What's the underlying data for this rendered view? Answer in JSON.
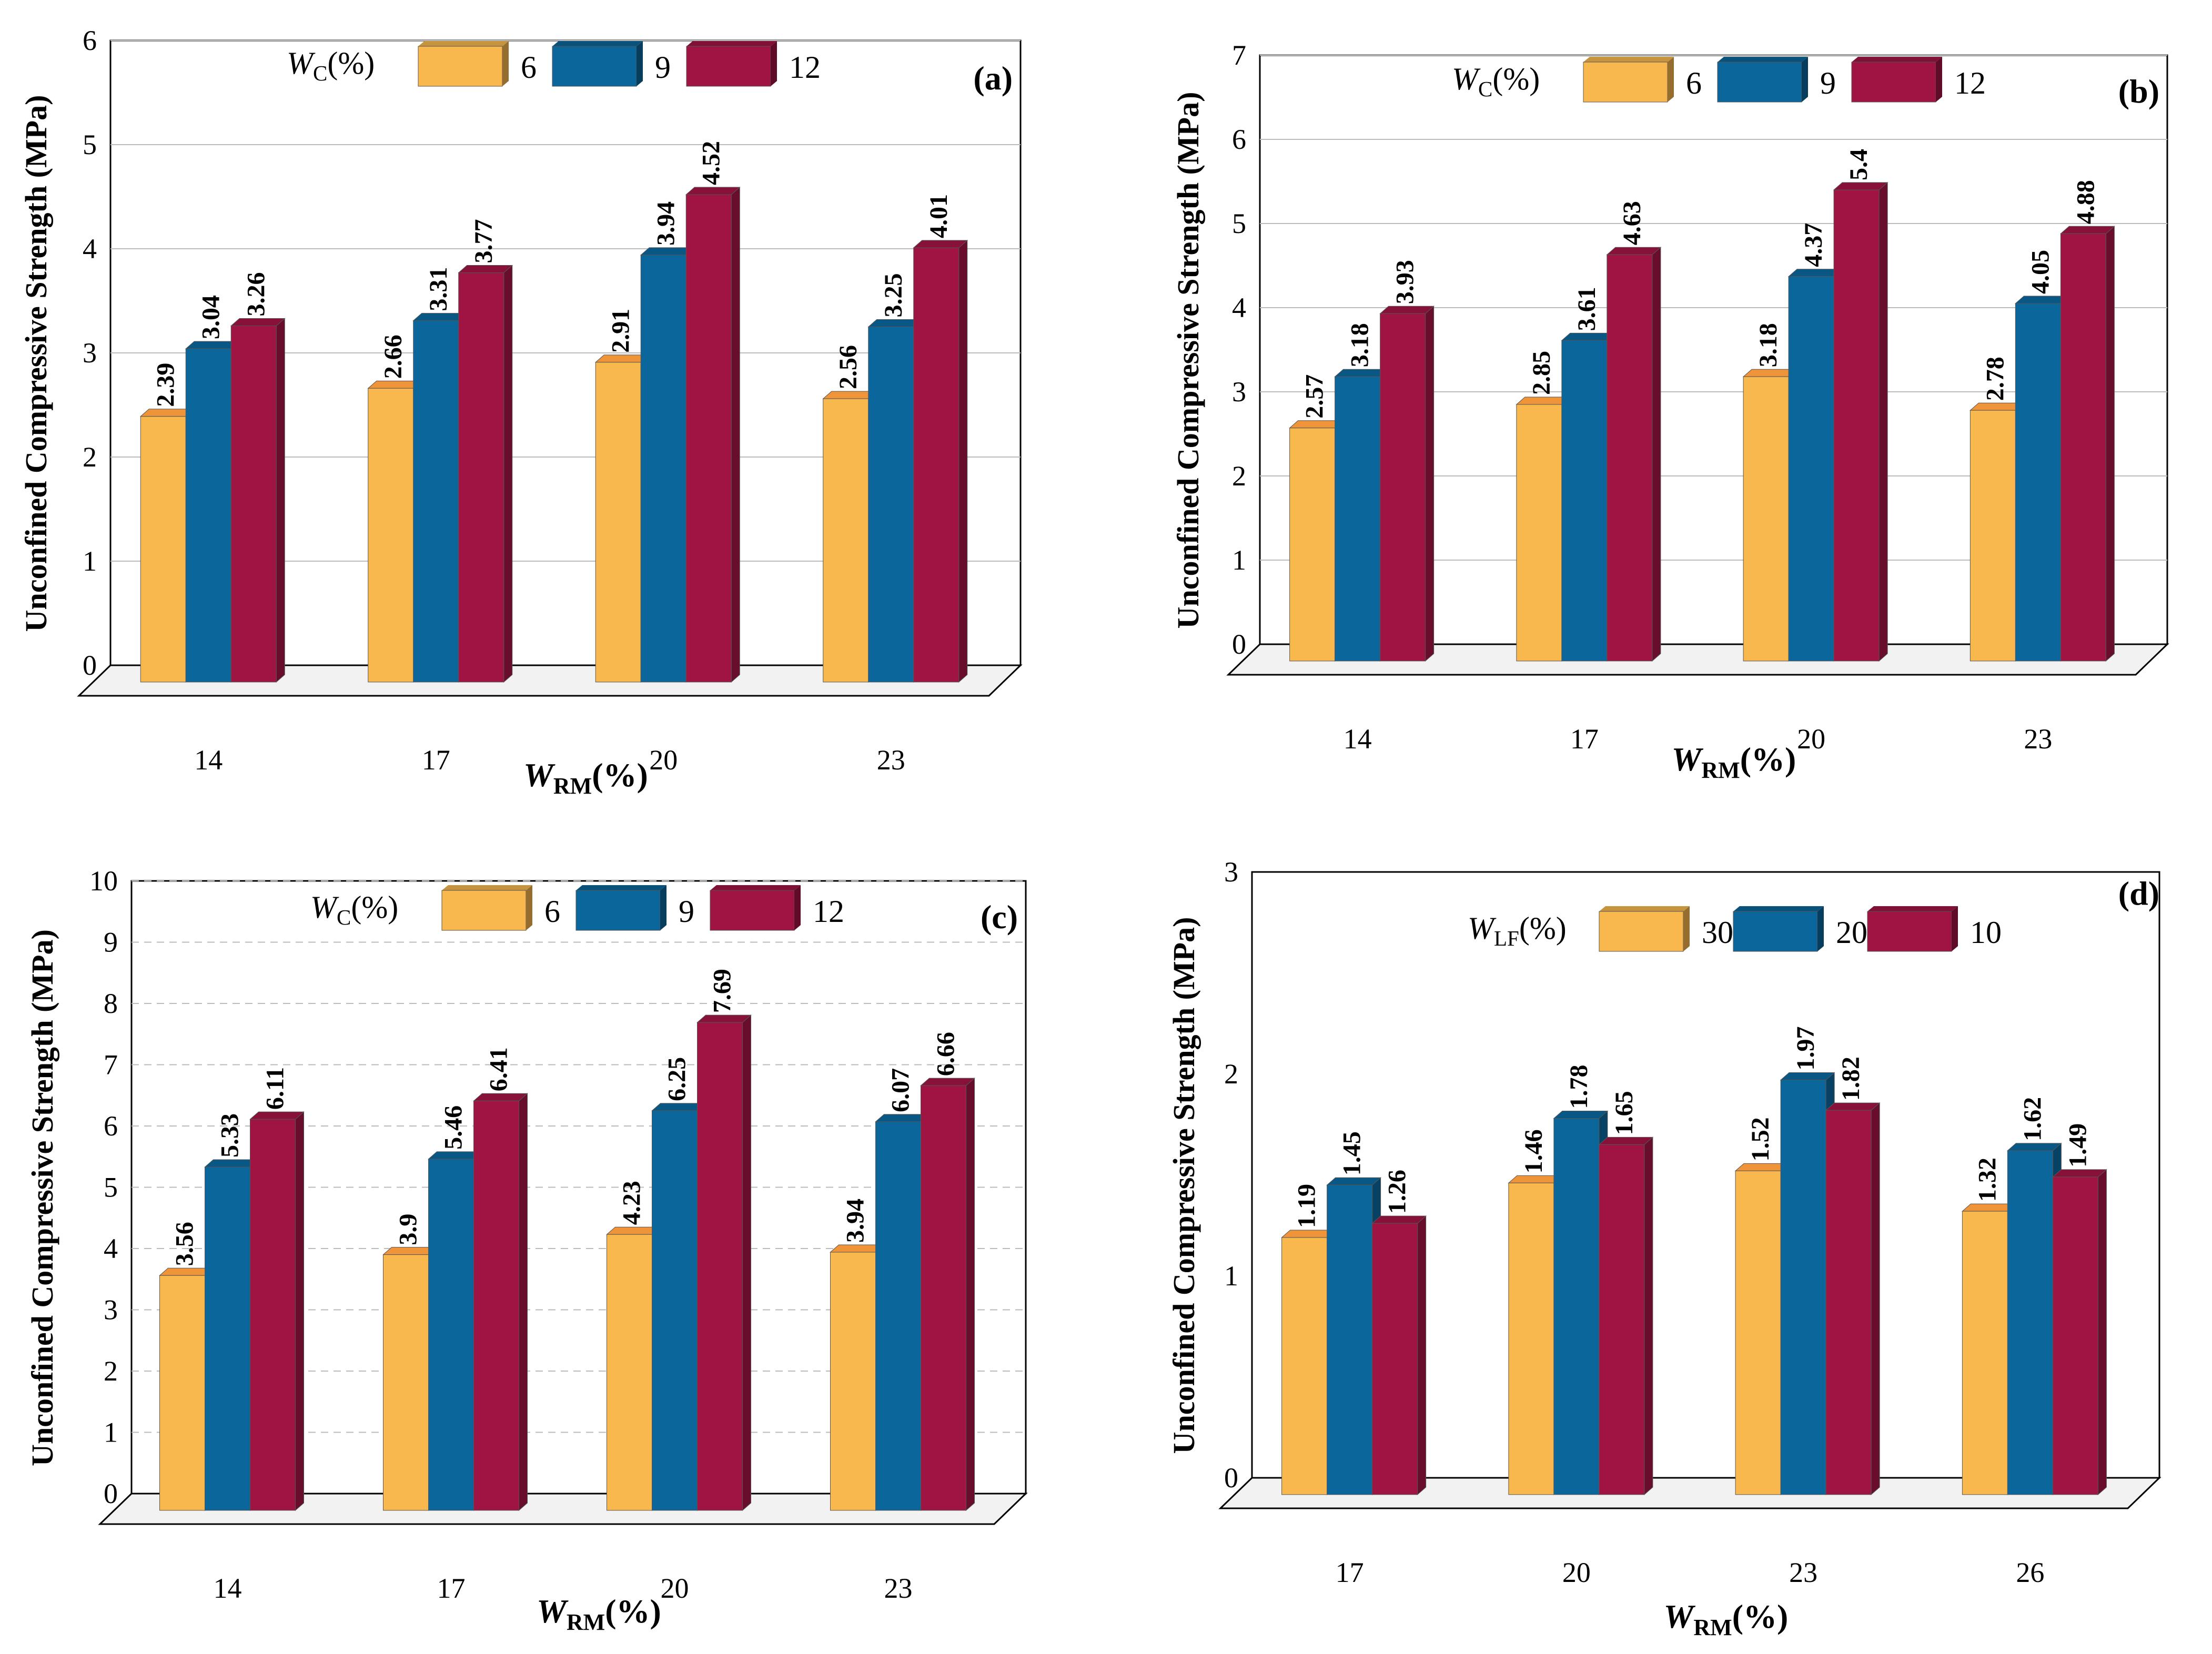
{
  "colors": {
    "s0": "#f8b84e",
    "s1": "#0b669b",
    "s2": "#a01443",
    "grid": "#bbbbbb",
    "axis": "#000000"
  },
  "chart_data": [
    {
      "panel": "(a)",
      "type": "bar",
      "ylabel": "Unconfined Compressive Strength (MPa)",
      "xlabel": {
        "main": "W",
        "sub": "RM",
        "suffix": "(%)"
      },
      "legend_title": {
        "main": "W",
        "sub": "C",
        "suffix": "(%)"
      },
      "categories": [
        "14",
        "17",
        "20",
        "23"
      ],
      "ylim": [
        0,
        6
      ],
      "yticks": [
        "0",
        "1",
        "2",
        "3",
        "4",
        "5",
        "6"
      ],
      "grid": "solid",
      "series": [
        {
          "name": "6",
          "values": [
            2.39,
            2.66,
            2.91,
            2.56
          ],
          "labels": [
            "2.39",
            "2.66",
            "2.91",
            "2.56"
          ]
        },
        {
          "name": "9",
          "values": [
            3.04,
            3.31,
            3.94,
            3.25
          ],
          "labels": [
            "3.04",
            "3.31",
            "3.94",
            "3.25"
          ]
        },
        {
          "name": "12",
          "values": [
            3.26,
            3.77,
            4.52,
            4.01
          ],
          "labels": [
            "3.26",
            "3.77",
            "4.52",
            "4.01"
          ]
        }
      ]
    },
    {
      "panel": "(b)",
      "type": "bar",
      "ylabel": "Unconfined Compressive Strength (MPa)",
      "xlabel": {
        "main": "W",
        "sub": "RM",
        "suffix": "(%)"
      },
      "legend_title": {
        "main": "W",
        "sub": "C",
        "suffix": "(%)"
      },
      "categories": [
        "14",
        "17",
        "20",
        "23"
      ],
      "ylim": [
        0,
        7
      ],
      "yticks": [
        "0",
        "1",
        "2",
        "3",
        "4",
        "5",
        "6",
        "7"
      ],
      "grid": "solid",
      "series": [
        {
          "name": "6",
          "values": [
            2.57,
            2.85,
            3.18,
            2.78
          ],
          "labels": [
            "2.57",
            "2.85",
            "3.18",
            "2.78"
          ]
        },
        {
          "name": "9",
          "values": [
            3.18,
            3.61,
            4.37,
            4.05
          ],
          "labels": [
            "3.18",
            "3.61",
            "4.37",
            "4.05"
          ]
        },
        {
          "name": "12",
          "values": [
            3.93,
            4.63,
            5.4,
            4.88
          ],
          "labels": [
            "3.93",
            "4.63",
            "5.4",
            "4.88"
          ]
        }
      ]
    },
    {
      "panel": "(c)",
      "type": "bar",
      "ylabel": "Unconfined Compressive Strength (MPa)",
      "xlabel": {
        "main": "W",
        "sub": "RM",
        "suffix": "(%)"
      },
      "legend_title": {
        "main": "W",
        "sub": "C",
        "suffix": "(%)"
      },
      "categories": [
        "14",
        "17",
        "20",
        "23"
      ],
      "ylim": [
        0,
        10
      ],
      "yticks": [
        "0",
        "1",
        "2",
        "3",
        "4",
        "5",
        "6",
        "7",
        "8",
        "9",
        "10"
      ],
      "grid": "dashed",
      "series": [
        {
          "name": "6",
          "values": [
            3.56,
            3.9,
            4.23,
            3.94
          ],
          "labels": [
            "3.56",
            "3.9",
            "4.23",
            "3.94"
          ]
        },
        {
          "name": "9",
          "values": [
            5.33,
            5.46,
            6.25,
            6.07
          ],
          "labels": [
            "5.33",
            "5.46",
            "6.25",
            "6.07"
          ]
        },
        {
          "name": "12",
          "values": [
            6.11,
            6.41,
            7.69,
            6.66
          ],
          "labels": [
            "6.11",
            "6.41",
            "7.69",
            "6.66"
          ]
        }
      ]
    },
    {
      "panel": "(d)",
      "type": "bar",
      "ylabel": "Unconfined Compressive Strength (MPa)",
      "xlabel": {
        "main": "W",
        "sub": "RM",
        "suffix": "(%)"
      },
      "legend_title": {
        "main": "W",
        "sub": "LF",
        "suffix": "(%)"
      },
      "categories": [
        "17",
        "20",
        "23",
        "26"
      ],
      "ylim": [
        0,
        3
      ],
      "yticks": [
        "0",
        "1",
        "2",
        "3"
      ],
      "grid": "none",
      "series": [
        {
          "name": "30",
          "values": [
            1.19,
            1.46,
            1.52,
            1.32
          ],
          "labels": [
            "1.19",
            "1.46",
            "1.52",
            "1.32"
          ]
        },
        {
          "name": "20",
          "values": [
            1.45,
            1.78,
            1.97,
            1.62
          ],
          "labels": [
            "1.45",
            "1.78",
            "1.97",
            "1.62"
          ]
        },
        {
          "name": "10",
          "values": [
            1.26,
            1.65,
            1.82,
            1.49
          ],
          "labels": [
            "1.26",
            "1.65",
            "1.82",
            "1.49"
          ]
        }
      ]
    }
  ]
}
